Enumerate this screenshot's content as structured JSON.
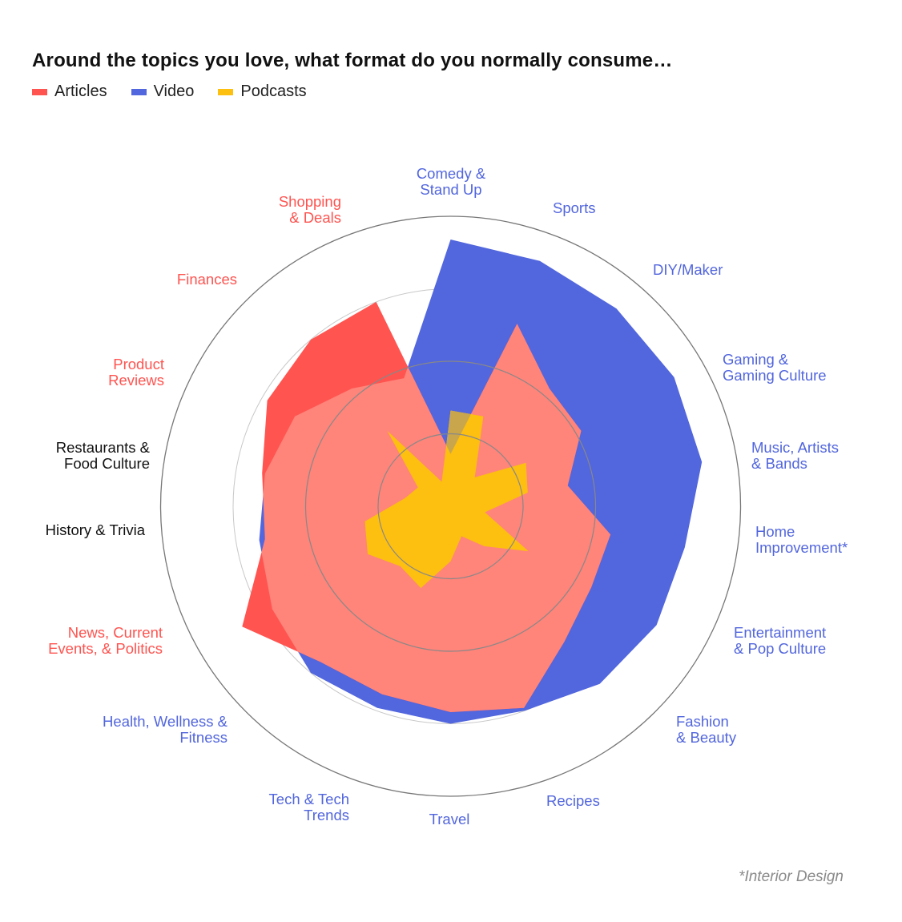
{
  "chart_data": {
    "type": "radar",
    "title": "Around the topics you love, what format do you normally consume…",
    "scale": [
      0,
      100
    ],
    "rings": [
      25,
      50,
      75,
      100
    ],
    "categories": [
      {
        "label": [
          "Comedy &",
          "Stand Up"
        ],
        "dominant": "Video"
      },
      {
        "label": [
          "Sports"
        ],
        "dominant": "Video"
      },
      {
        "label": [
          "DIY/Maker"
        ],
        "dominant": "Video"
      },
      {
        "label": [
          "Gaming &",
          "Gaming Culture"
        ],
        "dominant": "Video"
      },
      {
        "label": [
          "Music, Artists",
          "& Bands"
        ],
        "dominant": "Video"
      },
      {
        "label": [
          "Home",
          "Improvement*"
        ],
        "dominant": "Video"
      },
      {
        "label": [
          "Entertainment",
          "& Pop Culture"
        ],
        "dominant": "Video"
      },
      {
        "label": [
          "Fashion",
          "& Beauty"
        ],
        "dominant": "Video"
      },
      {
        "label": [
          "Recipes"
        ],
        "dominant": "Video"
      },
      {
        "label": [
          "Travel"
        ],
        "dominant": "Video"
      },
      {
        "label": [
          "Tech & Tech",
          "Trends"
        ],
        "dominant": "Video"
      },
      {
        "label": [
          "Health, Wellness &",
          "Fitness"
        ],
        "dominant": "Video"
      },
      {
        "label": [
          "News, Current",
          "Events, & Politics"
        ],
        "dominant": "Articles"
      },
      {
        "label": [
          "History & Trivia"
        ],
        "dominant": "none"
      },
      {
        "label": [
          "Restaurants &",
          "Food Culture"
        ],
        "dominant": "none"
      },
      {
        "label": [
          "Product",
          "Reviews"
        ],
        "dominant": "Articles"
      },
      {
        "label": [
          "Finances"
        ],
        "dominant": "Articles"
      },
      {
        "label": [
          "Shopping",
          "& Deals"
        ],
        "dominant": "Articles"
      }
    ],
    "series": [
      {
        "name": "Articles",
        "color": "#FF5450",
        "values": [
          18,
          67,
          53,
          52,
          41,
          56,
          56,
          61,
          74,
          71,
          69,
          70,
          83,
          65,
          66,
          73,
          75,
          75
        ]
      },
      {
        "name": "Video",
        "color": "#5266DD",
        "values": [
          92,
          90,
          89,
          89,
          88,
          82,
          82,
          80,
          75,
          75,
          74,
          75,
          71,
          67,
          65,
          62,
          53,
          47
        ]
      },
      {
        "name": "Podcasts",
        "color": "#FDBF10",
        "values": [
          33,
          33,
          13,
          30,
          27,
          12,
          31,
          18,
          11,
          19,
          30,
          27,
          33,
          30,
          16,
          13,
          34,
          9
        ]
      }
    ],
    "overlap_colors": {
      "articles_video": "#FF847A",
      "podcasts_video": "#C9A64C"
    },
    "label_colors": {
      "Video": "#5266DD",
      "Articles": "#FF5450",
      "none": "#111111"
    },
    "legend_placement": "top-left",
    "footnote": "*Interior Design"
  }
}
